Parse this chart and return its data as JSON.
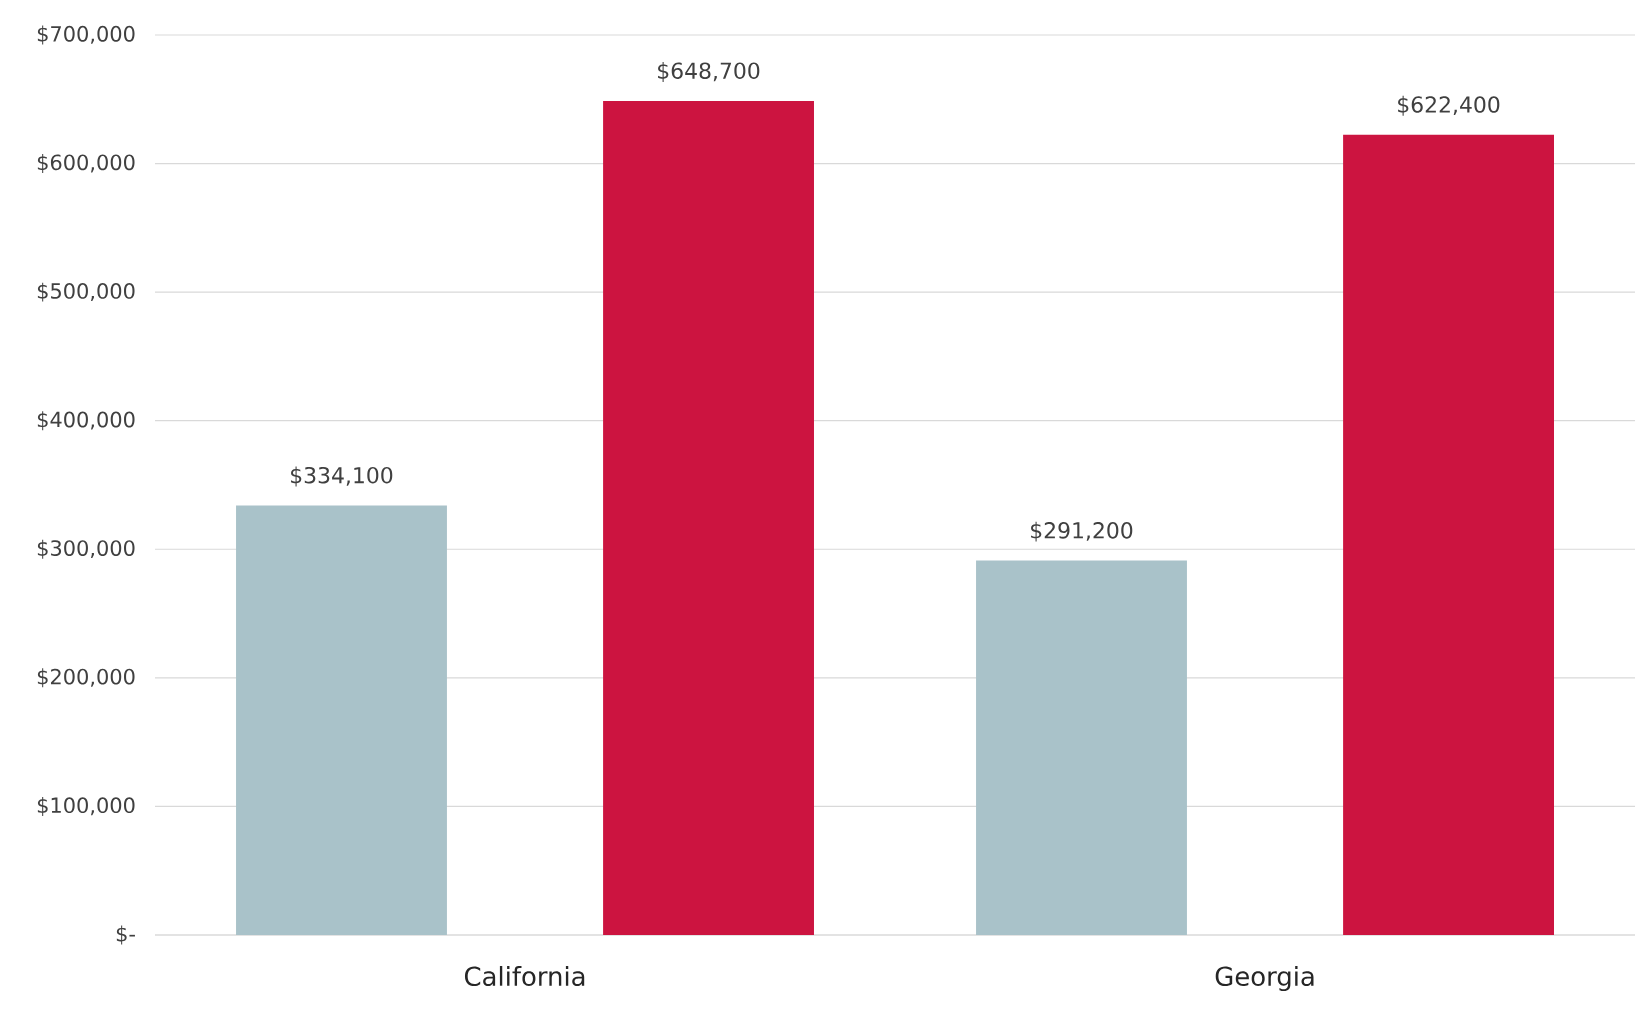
{
  "chart_data": {
    "type": "bar",
    "categories": [
      "California",
      "Georgia"
    ],
    "series": [
      {
        "color": "#a9c2c9",
        "values": [
          334100,
          291200
        ],
        "value_labels": [
          "$334,100",
          "$291,200"
        ]
      },
      {
        "color": "#cc1440",
        "values": [
          648700,
          622400
        ],
        "value_labels": [
          "$648,700",
          "$622,400"
        ]
      }
    ],
    "ylim": [
      0,
      700000
    ],
    "yticks": [
      {
        "value": 0,
        "label": "$-"
      },
      {
        "value": 100000,
        "label": "$100,000"
      },
      {
        "value": 200000,
        "label": "$200,000"
      },
      {
        "value": 300000,
        "label": "$300,000"
      },
      {
        "value": 400000,
        "label": "$400,000"
      },
      {
        "value": 500000,
        "label": "$500,000"
      },
      {
        "value": 600000,
        "label": "$600,000"
      },
      {
        "value": 700000,
        "label": "$700,000"
      }
    ],
    "grid": "y"
  }
}
